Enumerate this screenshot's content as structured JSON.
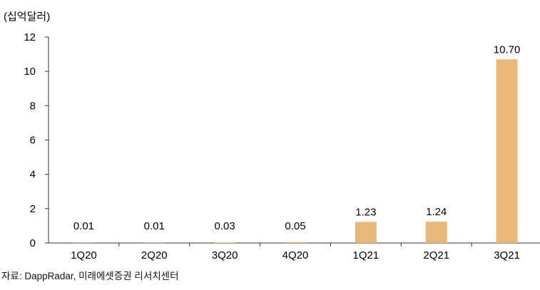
{
  "chart_data": {
    "type": "bar",
    "unit_label": "(십억달러)",
    "categories": [
      "1Q20",
      "2Q20",
      "3Q20",
      "4Q20",
      "1Q21",
      "2Q21",
      "3Q21"
    ],
    "values": [
      0.01,
      0.01,
      0.03,
      0.05,
      1.23,
      1.24,
      10.7
    ],
    "data_labels": [
      "0.01",
      "0.01",
      "0.03",
      "0.05",
      "1.23",
      "1.24",
      "10.70"
    ],
    "ylim": [
      0,
      12
    ],
    "yticks": [
      0,
      2,
      4,
      6,
      8,
      10,
      12
    ],
    "grid": false,
    "legend": "none",
    "bar_color": "#E8B878"
  },
  "source": "자료: DappRadar, 미래에셋증권 리서치센터"
}
